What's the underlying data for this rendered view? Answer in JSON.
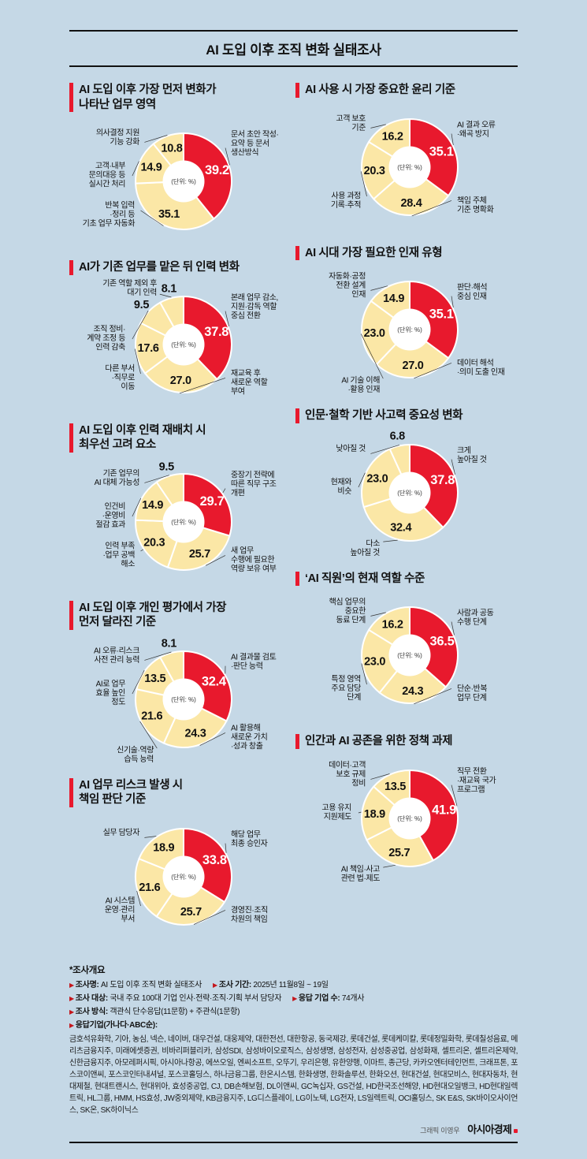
{
  "header": {
    "title": "AI 도입 이후 조직 변화 실태조사"
  },
  "colors": {
    "red": "#e8192d",
    "yellow": "#fbe7a6",
    "slice_border": "#ffffff",
    "background": "#c5d8e6"
  },
  "unit_label": "(단위: %)",
  "chart_data": [
    {
      "id": "first-changed-work-area",
      "column": "left",
      "type": "donut",
      "title": "AI 도입 이후 가장 먼저 변화가\n나타난 업무 영역",
      "slices": [
        {
          "label": "문서 초안 작성·\n요약 등 문서\n생산방식",
          "value": 39.2,
          "emphasis": true,
          "pos": "rt"
        },
        {
          "label": "반복 입력\n·정리 등\n기초 업무 자동화",
          "value": 35.1,
          "pos": "lb"
        },
        {
          "label": "고객·내부\n문의대응 등\n실시간 처리",
          "value": 14.9,
          "pos": "l"
        },
        {
          "label": "의사결정 지원\n기능 강화",
          "value": 10.8,
          "pos": "lt"
        }
      ]
    },
    {
      "id": "ai-ethics-standard",
      "column": "right",
      "type": "donut",
      "title": "AI 사용 시 가장 중요한 윤리 기준",
      "slices": [
        {
          "label": "AI 결과 오류\n·왜곡 방지",
          "value": 35.1,
          "emphasis": true,
          "pos": "rt"
        },
        {
          "label": "책임 주체\n기준 명확화",
          "value": 28.4,
          "pos": "rb"
        },
        {
          "label": "사용 과정\n기록·추적",
          "value": 20.3,
          "pos": "lb"
        },
        {
          "label": "고객 보호\n기준",
          "value": 16.2,
          "pos": "lt"
        }
      ]
    },
    {
      "id": "workforce-change-after-ai",
      "column": "left",
      "type": "donut",
      "title": "AI가 기존 업무를 맡은 뒤 인력 변화",
      "slices": [
        {
          "label": "본래 업무 감소,\n지원·감독 역할\n중심 전환",
          "value": 37.8,
          "emphasis": true,
          "pos": "rt"
        },
        {
          "label": "재교육 후\n새로운 역할\n부여",
          "value": 27.0,
          "pos": "rb"
        },
        {
          "label": "다른 부서\n·직무로\n이동",
          "value": 17.6,
          "pos": "lb"
        },
        {
          "label": "조직 정비·\n계약 조정 등\n인력 감축",
          "value": 9.5,
          "pos": "l"
        },
        {
          "label": "기존 역할 제외 후\n대기 인력",
          "value": 8.1,
          "pos": "t"
        }
      ]
    },
    {
      "id": "talent-type",
      "column": "right",
      "type": "donut",
      "title": "AI 시대 가장 필요한 인재 유형",
      "slices": [
        {
          "label": "판단·해석\n중심 인재",
          "value": 35.1,
          "emphasis": true,
          "pos": "rt"
        },
        {
          "label": "데이터 해석\n·의미 도출 인재",
          "value": 27.0,
          "pos": "rb"
        },
        {
          "label": "AI 기술 이해\n·활용 인재",
          "value": 23.0,
          "pos": "bl"
        },
        {
          "label": "자동화·공정\n전환 설계\n인재",
          "value": 14.9,
          "pos": "lt"
        }
      ]
    },
    {
      "id": "reallocation-priority",
      "column": "left",
      "type": "donut",
      "title": "AI 도입 이후 인력 재배치 시\n최우선 고려 요소",
      "slices": [
        {
          "label": "중장기 전략에\n따른 직무 구조\n개편",
          "value": 29.7,
          "emphasis": true,
          "pos": "rt"
        },
        {
          "label": "새 업무\n수행에 필요한\n역량 보유 여부",
          "value": 25.7,
          "pos": "rb"
        },
        {
          "label": "인력 부족\n·업무 공백\n해소",
          "value": 20.3,
          "pos": "lb"
        },
        {
          "label": "인건비\n·운영비\n절감 효과",
          "value": 14.9,
          "pos": "l"
        },
        {
          "label": "기존 업무의\nAI 대체 가능성",
          "value": 9.5,
          "pos": "lt"
        }
      ]
    },
    {
      "id": "humanities-thinking-importance",
      "column": "right",
      "type": "donut",
      "title": "인문·철학 기반 사고력 중요성 변화",
      "slices": [
        {
          "label": "크게\n높아질 것",
          "value": 37.8,
          "emphasis": true,
          "pos": "rt"
        },
        {
          "label": "다소\n높아질 것",
          "value": 32.4,
          "pos": "bl"
        },
        {
          "label": "현재와\n비슷",
          "value": 23.0,
          "pos": "l"
        },
        {
          "label": "낮아질 것",
          "value": 6.8,
          "pos": "lt"
        }
      ]
    },
    {
      "id": "evaluation-criteria-change",
      "column": "left",
      "type": "donut",
      "title": "AI 도입 이후 개인 평가에서 가장\n먼저 달라진 기준",
      "slices": [
        {
          "label": "AI 결과물 검토\n·판단 능력",
          "value": 32.4,
          "emphasis": true,
          "pos": "rt"
        },
        {
          "label": "AI 활용해\n새로운 가치\n·성과 창출",
          "value": 24.3,
          "pos": "rb"
        },
        {
          "label": "신기술·역량\n습득 능력",
          "value": 21.6,
          "pos": "bl"
        },
        {
          "label": "AI로 업무\n효율 높인\n정도",
          "value": 13.5,
          "pos": "l"
        },
        {
          "label": "AI 오류·리스크\n사전 관리 능력",
          "value": 8.1,
          "pos": "lt"
        }
      ]
    },
    {
      "id": "ai-employee-role-level",
      "column": "right",
      "type": "donut",
      "title": "‘AI 직원’의 현재 역할 수준",
      "slices": [
        {
          "label": "사람과 공동\n수행 단계",
          "value": 36.5,
          "emphasis": true,
          "pos": "rt"
        },
        {
          "label": "단순·반복\n업무 단계",
          "value": 24.3,
          "pos": "rb"
        },
        {
          "label": "특정 영역\n주요 담당\n단계",
          "value": 23.0,
          "pos": "lb"
        },
        {
          "label": "핵심 업무의\n중요한\n동료 단계",
          "value": 16.2,
          "pos": "lt"
        }
      ]
    },
    {
      "id": "risk-responsibility",
      "column": "left",
      "type": "donut",
      "title": "AI 업무 리스크 발생 시\n책임 판단 기준",
      "slices": [
        {
          "label": "해당 업무\n최종 승인자",
          "value": 33.8,
          "emphasis": true,
          "pos": "rt"
        },
        {
          "label": "경영진·조직\n차원의 책임",
          "value": 25.7,
          "pos": "rb"
        },
        {
          "label": "AI 시스템\n운영·관리\n부서",
          "value": 21.6,
          "pos": "lb"
        },
        {
          "label": "실무 담당자",
          "value": 18.9,
          "pos": "lt"
        }
      ]
    },
    {
      "id": "policy-tasks",
      "column": "right",
      "type": "donut",
      "title": "인간과 AI 공존을 위한 정책 과제",
      "slices": [
        {
          "label": "직무 전환\n·재교육 국가\n프로그램",
          "value": 41.9,
          "emphasis": true,
          "pos": "rt"
        },
        {
          "label": "AI 책임·사고\n관련 법·제도",
          "value": 25.7,
          "pos": "bl"
        },
        {
          "label": "고용 유지\n지원제도",
          "value": 18.9,
          "pos": "l"
        },
        {
          "label": "데이터·고객\n보호 규제\n정비",
          "value": 13.5,
          "pos": "lt"
        }
      ]
    }
  ],
  "survey": {
    "heading": "*조사개요",
    "lines": [
      [
        {
          "k": "조사명:",
          "v": "AI 도입 이후 조직 변화 실태조사"
        },
        {
          "k": "조사 기간:",
          "v": "2025년 11월8일 ~ 19일"
        }
      ],
      [
        {
          "k": "조사 대상:",
          "v": "국내 주요 100대 기업 인사·전략·조직·기획 부서 담당자"
        },
        {
          "k": "응답 기업 수:",
          "v": "74개사"
        }
      ],
      [
        {
          "k": "조사 방식:",
          "v": "객관식 단수응답(11문항) + 주관식(1문항)"
        }
      ],
      [
        {
          "k": "응답기업(가나다·ABC순):",
          "v": ""
        }
      ]
    ],
    "companies": "금호석유화학, 기아, 농심, 넥슨, 네이버, 대우건설, 대웅제약, 대한전선, 대한항공, 동국제강, 롯데건설, 롯데케미칼, 롯데정밀화학, 롯데칠성음료, 메리츠금융지주, 미래에셋증권, 비바리퍼블리카, 삼성SDI, 삼성바이오로직스, 삼성생명, 삼성전자, 삼성중공업, 삼성화재, 셀트리온, 셀트리온제약, 신한금융지주, 아모레퍼시픽, 아시아나항공, 에쓰오일, 엔씨소프트, 오뚜기, 우리은행, 유한양행, 이마트, 종근당, 카카오엔터테인먼트, 크래프톤, 포스코이앤씨, 포스코인터내셔널, 포스코홀딩스, 하나금융그룹, 한온시스템, 한화생명, 한화솔루션, 한화오션, 현대건설, 현대모비스, 현대자동차, 현대제철, 현대트랜시스, 현대위아, 효성중공업, CJ, DB손해보험, DL이앤씨, GC녹십자, GS건설, HD한국조선해양, HD현대오일뱅크, HD현대일렉트릭, HL그룹, HMM, HS효성, JW중외제약, KB금융지주, LG디스플레이, LG이노텍, LG전자, LS일렉트릭, OCI홀딩스, SK E&S, SK바이오사이언스, SK온, SK하이닉스"
  },
  "credit": {
    "graphic": "그래픽 이영우",
    "brand": "아시아경제"
  }
}
